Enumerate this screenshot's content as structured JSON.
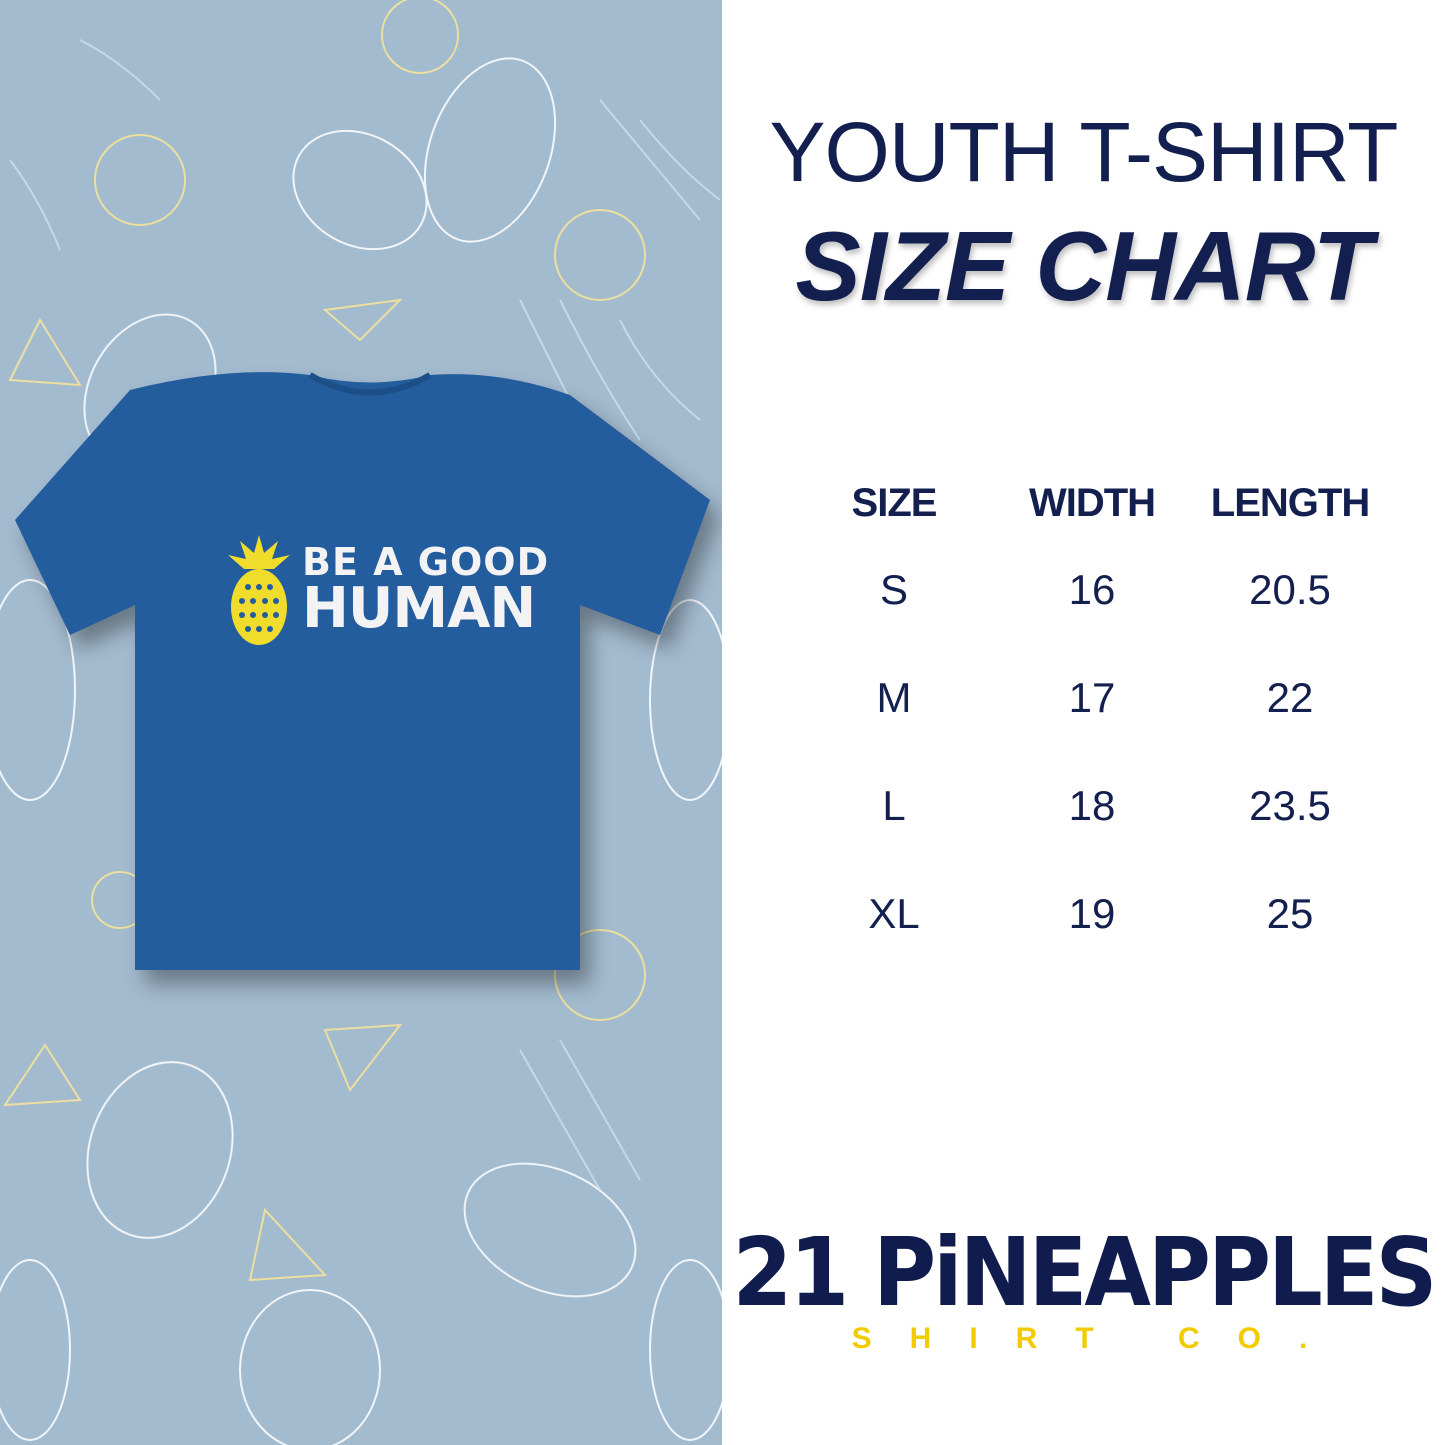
{
  "title": {
    "line1": "YOUTH T-SHIRT",
    "line2": "SIZE CHART"
  },
  "shirt": {
    "print_line1": "BE A GOOD",
    "print_line2": "HUMAN",
    "color": "#235d9e",
    "print_accent": "#f0dc2a"
  },
  "table": {
    "headers": [
      "SIZE",
      "WIDTH",
      "LENGTH"
    ],
    "rows": [
      [
        "S",
        "16",
        "20.5"
      ],
      [
        "M",
        "17",
        "22"
      ],
      [
        "L",
        "18",
        "23.5"
      ],
      [
        "XL",
        "19",
        "25"
      ]
    ]
  },
  "logo": {
    "name": "21 PiNEAPPLES",
    "tagline": "SHIRT CO."
  },
  "colors": {
    "text": "#13204f",
    "background_left": "#a3bbcf",
    "logo_yellow": "#f2cc00"
  }
}
